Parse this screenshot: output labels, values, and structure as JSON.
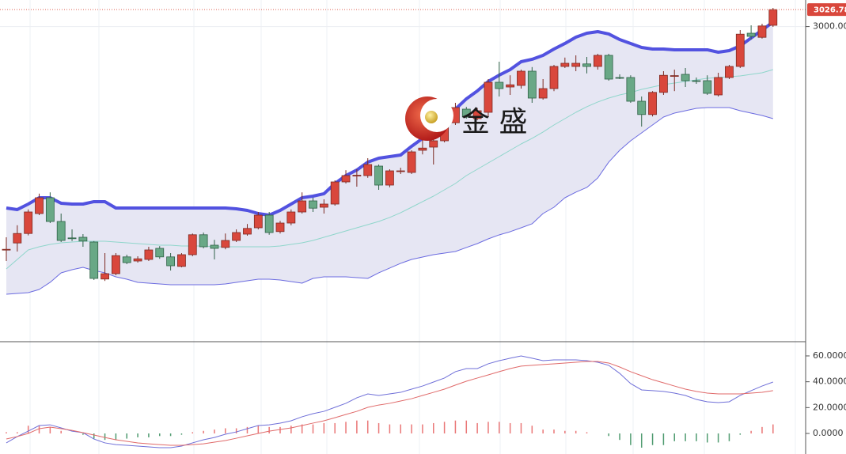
{
  "chart_data": [
    {
      "type": "candlestick",
      "watermark": "金 盛",
      "up_color": "#d9473c",
      "down_color": "#69a886",
      "open": [
        2647,
        2658,
        2673,
        2704.5,
        2729.5,
        2692,
        2666,
        2667,
        2659.5,
        2601,
        2609.5,
        2636,
        2629.5,
        2632,
        2649.5,
        2636,
        2621,
        2639.5,
        2671,
        2654.5,
        2651,
        2662,
        2672,
        2682,
        2702,
        2676,
        2689.5,
        2707,
        2724.5,
        2714.5,
        2719.5,
        2754.5,
        2764.5,
        2764.5,
        2779.5,
        2749.5,
        2771,
        2769.5,
        2804.5,
        2809.5,
        2819.5,
        2848,
        2869.5,
        2854.5,
        2864.5,
        2912,
        2904.5,
        2907,
        2929.5,
        2887,
        2902,
        2937,
        2937,
        2941,
        2937,
        2954.5,
        2919.5,
        2919.5,
        2882,
        2861,
        2896,
        2922,
        2924.5,
        2914.5,
        2914.5,
        2892,
        2919.5,
        2937,
        2989.5,
        2983,
        3002
      ],
      "high": [
        2667,
        2686,
        2711,
        2736,
        2738,
        2704.5,
        2679.5,
        2672,
        2661,
        2642,
        2642,
        2639.5,
        2637,
        2652,
        2653,
        2642,
        2642,
        2673,
        2674.5,
        2663,
        2673,
        2679.5,
        2688,
        2707,
        2707,
        2693,
        2711,
        2738,
        2729.5,
        2727,
        2757,
        2773,
        2774.5,
        2792,
        2782,
        2774.5,
        2777,
        2804.5,
        2829.5,
        2836,
        2861,
        2879.5,
        2873,
        2871,
        2917,
        2944.5,
        2923,
        2932,
        2936,
        2917,
        2939.5,
        2951,
        2954.5,
        2952,
        2957,
        2957,
        2924.5,
        2923,
        2889.5,
        2898,
        2929.5,
        2932,
        2934.5,
        2919.5,
        2923,
        2927,
        2939.5,
        2994.5,
        3002,
        3004.5,
        3029.5
      ],
      "low": [
        2629.5,
        2644.5,
        2670,
        2702,
        2689.5,
        2659.5,
        2661,
        2652,
        2599.5,
        2598,
        2607,
        2624.5,
        2627,
        2629.5,
        2633,
        2614.5,
        2619.5,
        2637,
        2649.5,
        2632,
        2648,
        2659.5,
        2669.5,
        2679.5,
        2671,
        2673,
        2686,
        2704.5,
        2707,
        2704.5,
        2717,
        2752,
        2747,
        2761,
        2742,
        2746,
        2767,
        2767,
        2798,
        2782,
        2817,
        2844.5,
        2854.5,
        2852,
        2857,
        2889.5,
        2892,
        2902,
        2879.5,
        2884.5,
        2898,
        2934.5,
        2929.5,
        2926,
        2932,
        2914.5,
        2917,
        2879.5,
        2842,
        2858,
        2892,
        2898,
        2904.5,
        2909.5,
        2892,
        2889.5,
        2917,
        2934.5,
        2979.5,
        2981,
        2999.5
      ],
      "close": [
        2648,
        2673,
        2707,
        2729.5,
        2692,
        2662,
        2665,
        2661,
        2602,
        2609.5,
        2638,
        2627,
        2633,
        2647,
        2636,
        2622,
        2639.5,
        2671,
        2652,
        2649.5,
        2662,
        2674.5,
        2681,
        2702,
        2674.5,
        2689.5,
        2707,
        2724.5,
        2713,
        2719.5,
        2754.5,
        2764.5,
        2765,
        2782,
        2749.5,
        2772,
        2772,
        2802,
        2808,
        2819.5,
        2848,
        2872,
        2857,
        2867,
        2912,
        2902,
        2908,
        2929.5,
        2887,
        2902,
        2937,
        2942,
        2942,
        2937,
        2954.5,
        2917,
        2919,
        2882,
        2861,
        2896,
        2923,
        2922.5,
        2914.5,
        2914,
        2894.5,
        2919.5,
        2937,
        2988,
        2984.5,
        3001,
        3026.78
      ],
      "band_fill": "#e6e6f3",
      "lines": [
        {
          "color": "#5252e0",
          "width": 4,
          "values": [
            2713.3,
            2710.8,
            2719.5,
            2729.5,
            2729.5,
            2720.8,
            2719.5,
            2719.5,
            2723.3,
            2723.3,
            2713.3,
            2713.3,
            2713.3,
            2713.3,
            2713.3,
            2713.3,
            2713.3,
            2713.3,
            2713.3,
            2713.3,
            2713.3,
            2712.0,
            2709.5,
            2704.5,
            2702.0,
            2709.5,
            2719.5,
            2729.5,
            2732.0,
            2735.8,
            2752.0,
            2764.5,
            2773.3,
            2785.8,
            2792.0,
            2794.5,
            2797.0,
            2810.8,
            2823.3,
            2835.8,
            2854.5,
            2869.5,
            2885.8,
            2898.3,
            2913.3,
            2923.3,
            2932.0,
            2944.5,
            2948.3,
            2954.5,
            2964.5,
            2973.3,
            2983.3,
            2989.5,
            2992.0,
            2988.3,
            2979.5,
            2973.3,
            2967.0,
            2964.5,
            2964.5,
            2963.3,
            2963.3,
            2963.3,
            2963.3,
            2959.5,
            2962.0,
            2969.5,
            2982.0,
            2994.5,
            3007.0
          ]
        },
        {
          "color": "#8fd6cb",
          "width": 1,
          "values": [
            2617,
            2632,
            2647,
            2652,
            2655.8,
            2658.3,
            2659.5,
            2660.8,
            2660.8,
            2660.8,
            2659.5,
            2658.3,
            2657,
            2655.8,
            2654.5,
            2654.5,
            2653.3,
            2653.3,
            2653.3,
            2652,
            2652,
            2652,
            2652,
            2652,
            2652,
            2653.3,
            2655.8,
            2658.3,
            2662,
            2667,
            2672,
            2677,
            2682,
            2687,
            2692,
            2698.3,
            2705.8,
            2714.5,
            2723.3,
            2732,
            2742,
            2752,
            2764.5,
            2774.5,
            2784.5,
            2794.5,
            2804.5,
            2814.5,
            2823.3,
            2833.3,
            2844.5,
            2854.5,
            2864.5,
            2873.3,
            2880.8,
            2887,
            2892,
            2895.8,
            2900.8,
            2904.5,
            2908.3,
            2910.8,
            2913.3,
            2915.8,
            2918.3,
            2919.5,
            2920.8,
            2922,
            2924.5,
            2927,
            2932
          ]
        },
        {
          "color": "#6b6be0",
          "width": 1,
          "values": [
            2577,
            2578.3,
            2579.5,
            2584.5,
            2595.8,
            2610.8,
            2615.8,
            2619.5,
            2614.5,
            2610.8,
            2604.5,
            2600.8,
            2595.8,
            2594.5,
            2593.3,
            2592,
            2592,
            2592,
            2592,
            2592,
            2593.3,
            2595.8,
            2598.3,
            2600.8,
            2600.8,
            2599.5,
            2597,
            2594.5,
            2602,
            2604.5,
            2604.5,
            2604.5,
            2603.3,
            2602,
            2610.8,
            2618.3,
            2625.8,
            2632,
            2635.8,
            2639.5,
            2642,
            2644.5,
            2650.8,
            2657,
            2664.5,
            2670.8,
            2675.8,
            2682,
            2688.3,
            2704.5,
            2714.5,
            2729.5,
            2738.3,
            2745.8,
            2760.8,
            2785.8,
            2804.5,
            2819.5,
            2832,
            2844.5,
            2857,
            2863.3,
            2867,
            2870.8,
            2872,
            2872,
            2872,
            2867,
            2863.3,
            2859.5,
            2854.5
          ]
        }
      ],
      "ylim": [
        2502,
        3042
      ],
      "yticks": [
        {
          "value": 3000,
          "label": "3000.00"
        }
      ]
    },
    {
      "type": "macd",
      "series": [
        {
          "color": "#6f6fd8",
          "values": [
            -7.3,
            -2.4,
            1.8,
            6.1,
            6.7,
            4.3,
            1.8,
            0.6,
            -4.3,
            -7.3,
            -8.6,
            -9.2,
            -9.8,
            -10.4,
            -11.0,
            -11.0,
            -9.8,
            -7.3,
            -4.9,
            -3.1,
            -0.6,
            1.2,
            3.7,
            6.1,
            6.7,
            8.0,
            9.8,
            12.9,
            15.3,
            17.1,
            20.2,
            23.3,
            27.6,
            30.6,
            29.4,
            30.6,
            31.8,
            34.3,
            36.7,
            39.8,
            42.9,
            47.8,
            50.2,
            50.2,
            53.9,
            56.3,
            58.2,
            60.0,
            58.2,
            56.3,
            56.9,
            56.9,
            56.9,
            56.3,
            55.1,
            52.7,
            46.5,
            38.6,
            33.7,
            33.1,
            32.5,
            31.2,
            29.4,
            26.3,
            24.5,
            23.9,
            24.5,
            29.4,
            33.1,
            36.7,
            39.8
          ]
        },
        {
          "color": "#e06a6a",
          "values": [
            -4.3,
            -2.4,
            0,
            3.7,
            4.9,
            3.7,
            2.4,
            0.6,
            -1.2,
            -3.1,
            -4.9,
            -6.1,
            -7.3,
            -8.0,
            -8.6,
            -9.2,
            -9.2,
            -8.6,
            -8.0,
            -6.7,
            -5.5,
            -3.7,
            -1.8,
            0,
            1.8,
            3.1,
            4.3,
            6.1,
            8.0,
            9.8,
            12.2,
            14.7,
            17.1,
            20.2,
            22.0,
            23.3,
            25.1,
            26.9,
            29.4,
            31.8,
            34.3,
            37.4,
            40.4,
            42.9,
            45.3,
            47.8,
            50.2,
            52.1,
            52.7,
            53.3,
            53.9,
            54.5,
            55.1,
            55.7,
            55.7,
            54.5,
            51.4,
            47.8,
            44.7,
            41.6,
            39.2,
            36.7,
            34.3,
            32.5,
            31.2,
            30.6,
            30.6,
            30.6,
            31.2,
            31.8,
            33.1
          ]
        }
      ],
      "histogram": {
        "up_color": "#ea7777",
        "down_color": "#4f9b70",
        "values": [
          1,
          1,
          6,
          6,
          5,
          2,
          0,
          -1,
          -4,
          -5,
          -5,
          -4,
          -3,
          -3,
          -2,
          -2,
          -1,
          1,
          2,
          3,
          4,
          4,
          5,
          6,
          5,
          5,
          6,
          7,
          7,
          8,
          8,
          9,
          10,
          10,
          8,
          7,
          7,
          7,
          7,
          8,
          9,
          10,
          10,
          8,
          9,
          9,
          8,
          8,
          6,
          3,
          3,
          2,
          2,
          1,
          0,
          -2,
          -5,
          -9,
          -11,
          -9,
          -9,
          -6,
          -6,
          -6,
          -7,
          -7,
          -6,
          -1,
          2,
          5,
          7
        ]
      },
      "ylim": [
        -15.9,
        71.0
      ],
      "yticks": [
        {
          "value": 60,
          "label": "60.0000"
        },
        {
          "value": 40,
          "label": "40.0000"
        },
        {
          "value": 20,
          "label": "20.0000"
        },
        {
          "value": 0,
          "label": "0.0000"
        }
      ]
    }
  ]
}
